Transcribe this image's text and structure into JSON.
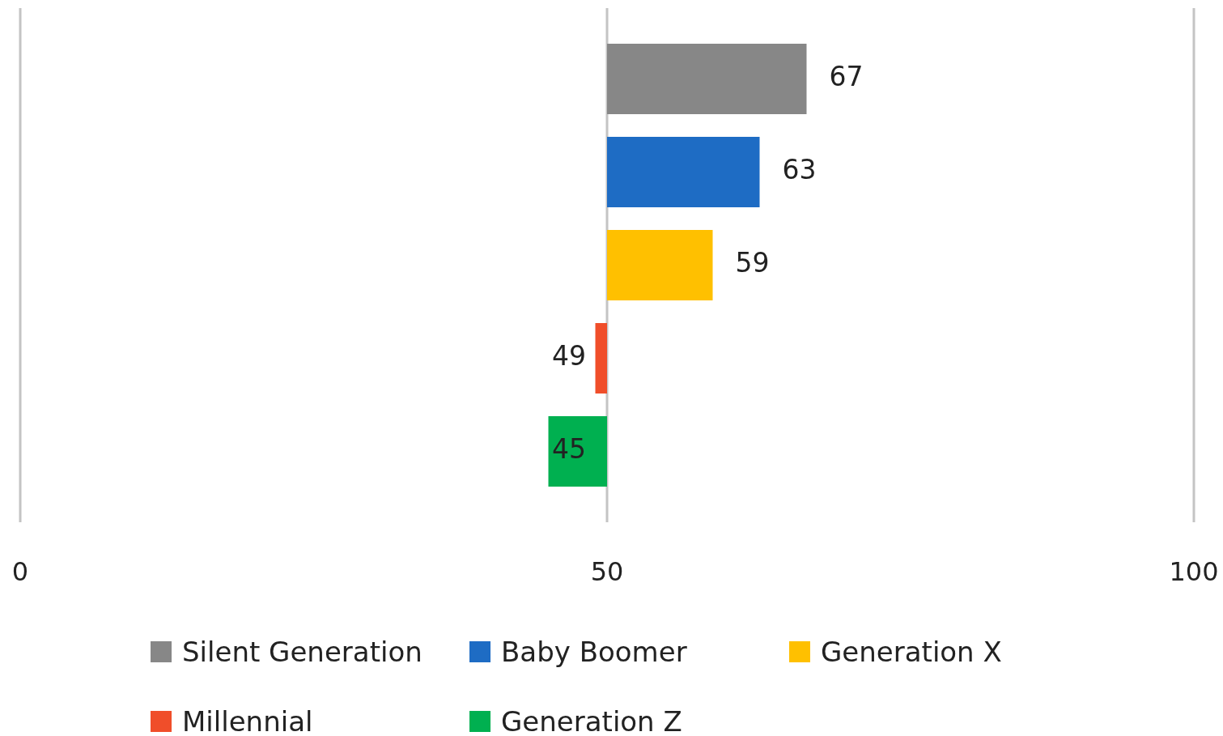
{
  "chart_data": {
    "type": "bar",
    "orientation": "horizontal",
    "categories": [
      null,
      null,
      null,
      null,
      null
    ],
    "series": [
      {
        "name": "Silent Generation",
        "color": "#878787",
        "base": [
          50,
          null,
          null,
          null,
          null
        ],
        "values": [
          17,
          null,
          null,
          null,
          null
        ],
        "value_labels": [
          "67",
          null,
          null,
          null,
          null
        ]
      },
      {
        "name": "Baby Boomer",
        "color": "#1e6cc4",
        "base": [
          null,
          50,
          null,
          null,
          null
        ],
        "values": [
          null,
          13,
          null,
          null,
          null
        ],
        "value_labels": [
          null,
          "63",
          null,
          null,
          null
        ]
      },
      {
        "name": "Generation X",
        "color": "#ffc000",
        "base": [
          null,
          null,
          50,
          null,
          null
        ],
        "values": [
          null,
          null,
          9,
          null,
          null
        ],
        "value_labels": [
          null,
          null,
          "59",
          null,
          null
        ]
      },
      {
        "name": "Millennial",
        "color": "#f04e2a",
        "base": [
          null,
          null,
          null,
          50,
          null
        ],
        "values": [
          null,
          null,
          null,
          -1,
          null
        ],
        "value_labels": [
          null,
          null,
          null,
          "49",
          null
        ]
      },
      {
        "name": "Generation Z",
        "color": "#00b050",
        "base": [
          null,
          null,
          null,
          null,
          50
        ],
        "values": [
          null,
          null,
          null,
          null,
          -5
        ],
        "value_labels": [
          null,
          null,
          null,
          null,
          "45"
        ]
      }
    ],
    "xlim": [
      0,
      100
    ],
    "xticks": [
      0,
      50,
      100
    ],
    "grid": "x",
    "tick_labels": "x",
    "legend": "bottom"
  }
}
